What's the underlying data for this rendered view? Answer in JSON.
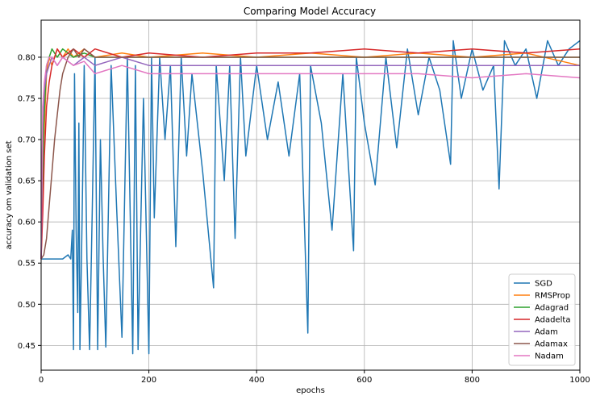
{
  "chart_data": {
    "type": "line",
    "title": "Comparing Model Accuracy",
    "xlabel": "epochs",
    "ylabel": "accuracy om validation set",
    "xlim": [
      0,
      1000
    ],
    "ylim": [
      0.42,
      0.845
    ],
    "xticks": [
      0,
      200,
      400,
      600,
      800,
      1000
    ],
    "xtick_labels": [
      "0",
      "200",
      "400",
      "600",
      "800",
      "1000"
    ],
    "yticks": [
      0.45,
      0.5,
      0.55,
      0.6,
      0.65,
      0.7,
      0.75,
      0.8
    ],
    "ytick_labels": [
      "0.45",
      "0.50",
      "0.55",
      "0.60",
      "0.65",
      "0.70",
      "0.75",
      "0.80"
    ],
    "grid": true,
    "legend_position": "lower-right",
    "series": [
      {
        "name": "SGD",
        "color": "#1f77b4",
        "x": [
          0,
          20,
          40,
          50,
          55,
          58,
          60,
          62,
          65,
          68,
          70,
          72,
          75,
          78,
          80,
          85,
          90,
          95,
          100,
          105,
          110,
          115,
          120,
          130,
          140,
          150,
          160,
          170,
          175,
          180,
          190,
          200,
          205,
          210,
          220,
          230,
          240,
          250,
          260,
          270,
          280,
          300,
          320,
          325,
          340,
          350,
          360,
          370,
          380,
          400,
          420,
          440,
          460,
          480,
          495,
          500,
          520,
          540,
          560,
          580,
          585,
          600,
          620,
          640,
          660,
          680,
          700,
          720,
          740,
          760,
          765,
          780,
          800,
          820,
          840,
          850,
          860,
          880,
          900,
          920,
          940,
          960,
          980,
          1000
        ],
        "y": [
          0.555,
          0.555,
          0.555,
          0.56,
          0.555,
          0.59,
          0.445,
          0.78,
          0.59,
          0.49,
          0.72,
          0.445,
          0.56,
          0.69,
          0.79,
          0.555,
          0.445,
          0.62,
          0.8,
          0.445,
          0.7,
          0.56,
          0.448,
          0.79,
          0.62,
          0.46,
          0.8,
          0.44,
          0.79,
          0.445,
          0.75,
          0.44,
          0.8,
          0.605,
          0.8,
          0.7,
          0.79,
          0.57,
          0.8,
          0.68,
          0.78,
          0.66,
          0.52,
          0.79,
          0.65,
          0.79,
          0.58,
          0.8,
          0.68,
          0.79,
          0.7,
          0.77,
          0.68,
          0.78,
          0.465,
          0.79,
          0.72,
          0.59,
          0.78,
          0.565,
          0.8,
          0.72,
          0.645,
          0.8,
          0.69,
          0.81,
          0.73,
          0.8,
          0.76,
          0.67,
          0.82,
          0.75,
          0.81,
          0.76,
          0.79,
          0.64,
          0.82,
          0.79,
          0.81,
          0.75,
          0.82,
          0.79,
          0.81,
          0.82
        ]
      },
      {
        "name": "RMSProp",
        "color": "#ff7f0e",
        "x": [
          0,
          5,
          10,
          15,
          20,
          25,
          30,
          40,
          50,
          60,
          80,
          100,
          150,
          200,
          300,
          400,
          500,
          600,
          700,
          800,
          900,
          1000
        ],
        "y": [
          0.555,
          0.7,
          0.78,
          0.8,
          0.79,
          0.8,
          0.81,
          0.8,
          0.81,
          0.8,
          0.81,
          0.8,
          0.805,
          0.8,
          0.805,
          0.8,
          0.805,
          0.8,
          0.805,
          0.8,
          0.805,
          0.79
        ]
      },
      {
        "name": "Adagrad",
        "color": "#2ca02c",
        "x": [
          0,
          5,
          10,
          15,
          20,
          30,
          40,
          60,
          80,
          100,
          150,
          200,
          300,
          400,
          500,
          600,
          700,
          800,
          900,
          1000
        ],
        "y": [
          0.555,
          0.72,
          0.79,
          0.8,
          0.81,
          0.8,
          0.81,
          0.8,
          0.805,
          0.8,
          0.8,
          0.8,
          0.8,
          0.8,
          0.8,
          0.8,
          0.8,
          0.8,
          0.8,
          0.8
        ]
      },
      {
        "name": "Adadelta",
        "color": "#d62728",
        "x": [
          0,
          3,
          6,
          10,
          15,
          20,
          25,
          30,
          40,
          60,
          80,
          100,
          150,
          200,
          300,
          400,
          500,
          600,
          700,
          800,
          900,
          1000
        ],
        "y": [
          0.555,
          0.61,
          0.68,
          0.74,
          0.77,
          0.79,
          0.8,
          0.81,
          0.8,
          0.81,
          0.8,
          0.81,
          0.8,
          0.805,
          0.8,
          0.805,
          0.805,
          0.81,
          0.805,
          0.81,
          0.805,
          0.81
        ]
      },
      {
        "name": "Adam",
        "color": "#9467bd",
        "x": [
          0,
          3,
          6,
          10,
          15,
          20,
          30,
          40,
          60,
          80,
          100,
          150,
          200,
          300,
          400,
          500,
          600,
          700,
          800,
          900,
          1000
        ],
        "y": [
          0.555,
          0.72,
          0.76,
          0.78,
          0.79,
          0.8,
          0.79,
          0.8,
          0.79,
          0.8,
          0.79,
          0.8,
          0.79,
          0.79,
          0.79,
          0.79,
          0.79,
          0.79,
          0.79,
          0.79,
          0.79
        ]
      },
      {
        "name": "Adamax",
        "color": "#8c564b",
        "x": [
          0,
          5,
          10,
          15,
          20,
          25,
          30,
          35,
          40,
          50,
          60,
          70,
          80,
          100,
          150,
          200,
          300,
          400,
          500,
          600,
          700,
          800,
          900,
          1000
        ],
        "y": [
          0.555,
          0.56,
          0.58,
          0.62,
          0.66,
          0.7,
          0.73,
          0.76,
          0.78,
          0.8,
          0.81,
          0.8,
          0.81,
          0.8,
          0.8,
          0.8,
          0.8,
          0.8,
          0.8,
          0.8,
          0.8,
          0.8,
          0.8,
          0.8
        ]
      },
      {
        "name": "Nadam",
        "color": "#e377c2",
        "x": [
          0,
          3,
          6,
          10,
          15,
          20,
          30,
          40,
          60,
          80,
          100,
          150,
          200,
          300,
          400,
          500,
          600,
          700,
          800,
          900,
          1000
        ],
        "y": [
          0.555,
          0.74,
          0.77,
          0.79,
          0.8,
          0.8,
          0.79,
          0.8,
          0.79,
          0.795,
          0.78,
          0.79,
          0.78,
          0.78,
          0.78,
          0.78,
          0.78,
          0.78,
          0.775,
          0.78,
          0.775
        ]
      }
    ]
  }
}
